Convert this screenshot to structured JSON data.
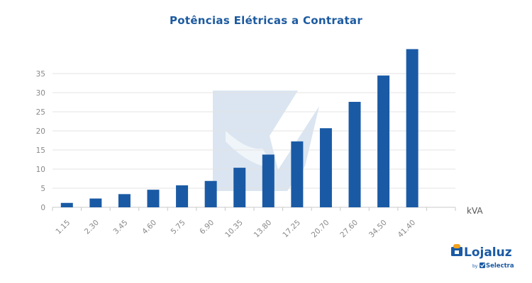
{
  "chart_data": {
    "type": "bar",
    "title": "Potências Elétricas a Contratar",
    "xlabel": "kVA",
    "ylabel": "",
    "categories": [
      "1.15",
      "2.30",
      "3.45",
      "4.60",
      "5.75",
      "6.90",
      "10.35",
      "13.80",
      "17.25",
      "20.70",
      "27.60",
      "34.50",
      "41.40"
    ],
    "values": [
      1.15,
      2.3,
      3.45,
      4.6,
      5.75,
      6.9,
      10.35,
      13.8,
      17.25,
      20.7,
      27.6,
      34.5,
      41.4
    ],
    "yticks": [
      0,
      5,
      10,
      15,
      20,
      25,
      30,
      35
    ],
    "ylim": [
      0,
      40
    ],
    "grid": true,
    "legend": "none",
    "bar_color": "#1a5aa5",
    "grid_color": "#e3e3e3",
    "watermark_color": "#d3e0ee"
  },
  "logo": {
    "name": "Lojaluz",
    "by": "by",
    "partner": "Selectra",
    "color": "#1a5aa5"
  }
}
